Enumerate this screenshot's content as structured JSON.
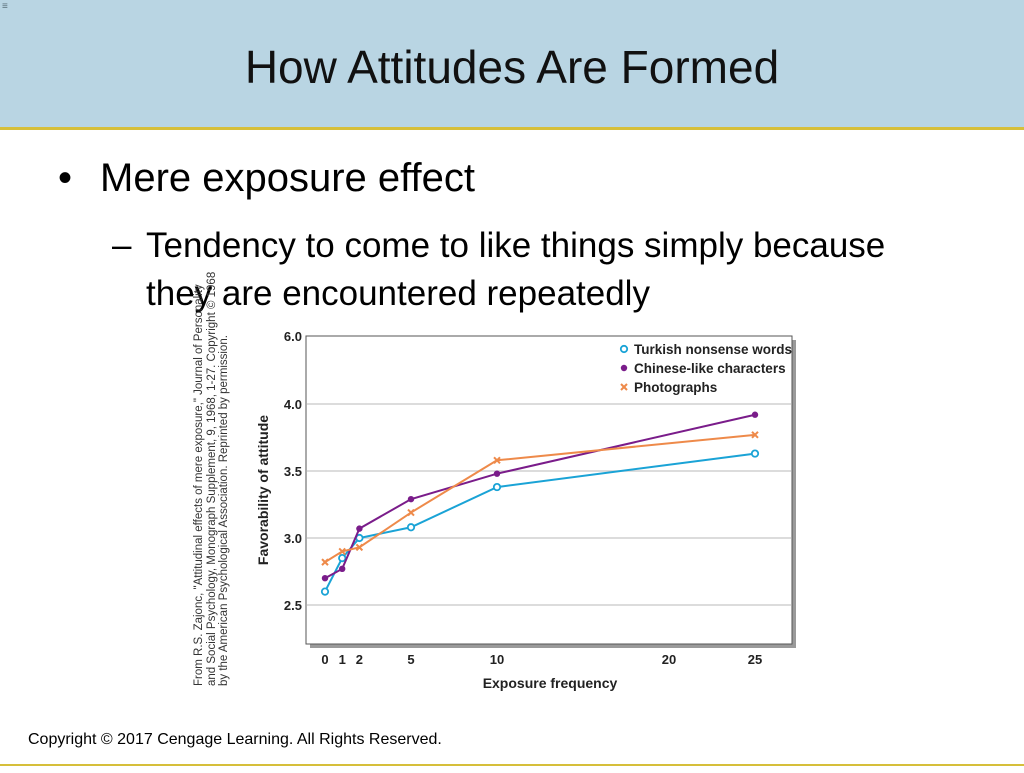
{
  "slide": {
    "title": "How Attitudes Are Formed",
    "bullet": "Mere exposure effect",
    "bullet_marker": "•",
    "sub_marker": "–",
    "sub_bullet": "Tendency to come to like things simply because they are encountered repeatedly",
    "credit_lines": [
      "From R.S. Zajonc, \"Attitudinal effects of mere exposure,\" Journal of Personality",
      "and Social Psychology, Monograph Supplement, 9, 1968, 1-27. Copyright © 1968",
      "by the American Psychological Association. Reprinted by permission."
    ],
    "footer": "Copyright © 2017 Cengage Learning. All Rights Reserved."
  },
  "colors": {
    "title_band": "#b9d5e3",
    "accent_line": "#d6bf3a",
    "turkish": "#1aa3d6",
    "chinese": "#7a1c8a",
    "photographs": "#ee8a4a"
  },
  "chart_data": {
    "type": "line",
    "title": "",
    "xlabel": "Exposure frequency",
    "ylabel": "Favorability of attitude",
    "x_ticks": [
      0,
      1,
      2,
      5,
      10,
      20,
      25
    ],
    "y_ticks": [
      "2.5",
      "3.0",
      "3.5",
      "4.0",
      "6.0"
    ],
    "grid": true,
    "legend_position": "top-right",
    "series": [
      {
        "name": "Turkish nonsense words",
        "marker": "circle",
        "color": "#1aa3d6",
        "x": [
          0,
          1,
          2,
          5,
          10,
          25
        ],
        "y": [
          2.6,
          2.85,
          3.0,
          3.08,
          3.38,
          3.63
        ]
      },
      {
        "name": "Chinese-like characters",
        "marker": "dot",
        "color": "#7a1c8a",
        "x": [
          0,
          1,
          2,
          5,
          10,
          25
        ],
        "y": [
          2.7,
          2.77,
          3.07,
          3.29,
          3.48,
          3.92
        ]
      },
      {
        "name": "Photographs",
        "marker": "x",
        "color": "#ee8a4a",
        "x": [
          0,
          1,
          2,
          5,
          10,
          25
        ],
        "y": [
          2.82,
          2.9,
          2.93,
          3.19,
          3.58,
          3.77
        ]
      }
    ]
  }
}
